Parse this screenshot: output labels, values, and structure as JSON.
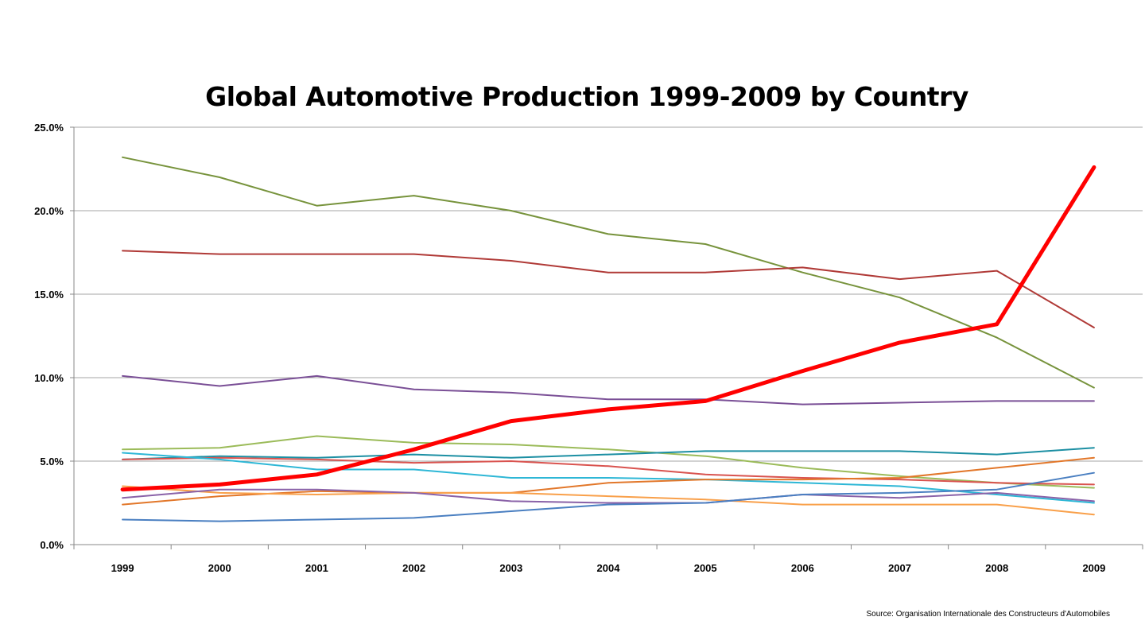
{
  "chart_data": {
    "type": "line",
    "title": "Global Automotive Production 1999-2009 by Country",
    "source": "Source: Organisation Internationale des Constructeurs d'Automobiles",
    "xlabel": "",
    "ylabel": "",
    "categories": [
      "1999",
      "2000",
      "2001",
      "2002",
      "2003",
      "2004",
      "2005",
      "2006",
      "2007",
      "2008",
      "2009"
    ],
    "ylim": [
      0,
      25
    ],
    "yticks": [
      "0.0%",
      "5.0%",
      "10.0%",
      "15.0%",
      "20.0%",
      "25.0%"
    ],
    "grid": true,
    "legend": "none",
    "series": [
      {
        "color": "#77933C",
        "width": 2,
        "values": [
          23.2,
          22.0,
          20.3,
          20.9,
          20.0,
          18.6,
          18.0,
          16.3,
          14.8,
          12.4,
          9.4
        ]
      },
      {
        "color": "#B03A37",
        "width": 2,
        "values": [
          17.6,
          17.4,
          17.4,
          17.4,
          17.0,
          16.3,
          16.3,
          16.6,
          15.9,
          16.4,
          13.0
        ]
      },
      {
        "color": "#7A4F96",
        "width": 2,
        "values": [
          10.1,
          9.5,
          10.1,
          9.3,
          9.1,
          8.7,
          8.7,
          8.4,
          8.5,
          8.6,
          8.6
        ]
      },
      {
        "color": "#9BBB59",
        "width": 2,
        "values": [
          5.7,
          5.8,
          6.5,
          6.1,
          6.0,
          5.7,
          5.3,
          4.6,
          4.1,
          3.7,
          3.4
        ]
      },
      {
        "color": "#1C8FA3",
        "width": 2,
        "values": [
          5.1,
          5.3,
          5.2,
          5.4,
          5.2,
          5.4,
          5.6,
          5.6,
          5.6,
          5.4,
          5.8
        ]
      },
      {
        "color": "#D9534F",
        "width": 2,
        "values": [
          5.1,
          5.2,
          5.1,
          4.9,
          5.0,
          4.7,
          4.2,
          4.0,
          3.9,
          3.7,
          3.6
        ]
      },
      {
        "color": "#2EB7D6",
        "width": 2,
        "values": [
          5.5,
          5.1,
          4.5,
          4.5,
          4.0,
          4.0,
          3.9,
          3.7,
          3.5,
          3.0,
          2.5
        ]
      },
      {
        "color": "#E2772A",
        "width": 2,
        "values": [
          2.4,
          2.9,
          3.2,
          3.1,
          3.1,
          3.7,
          3.9,
          3.9,
          4.0,
          4.6,
          5.2
        ]
      },
      {
        "color": "#F9A04A",
        "width": 2,
        "values": [
          3.5,
          3.1,
          3.0,
          3.1,
          3.1,
          2.9,
          2.7,
          2.4,
          2.4,
          2.4,
          1.8
        ]
      },
      {
        "color": "#8A62A8",
        "width": 2,
        "values": [
          2.8,
          3.3,
          3.3,
          3.1,
          2.6,
          2.5,
          2.5,
          3.0,
          2.8,
          3.1,
          2.6
        ]
      },
      {
        "color": "#4A7FC1",
        "width": 2,
        "values": [
          1.5,
          1.4,
          1.5,
          1.6,
          2.0,
          2.4,
          2.5,
          3.0,
          3.1,
          3.3,
          4.3
        ]
      },
      {
        "color": "#FF0000",
        "width": 5,
        "values": [
          3.3,
          3.6,
          4.2,
          5.7,
          7.4,
          8.1,
          8.6,
          10.4,
          12.1,
          13.2,
          22.6
        ]
      }
    ]
  }
}
